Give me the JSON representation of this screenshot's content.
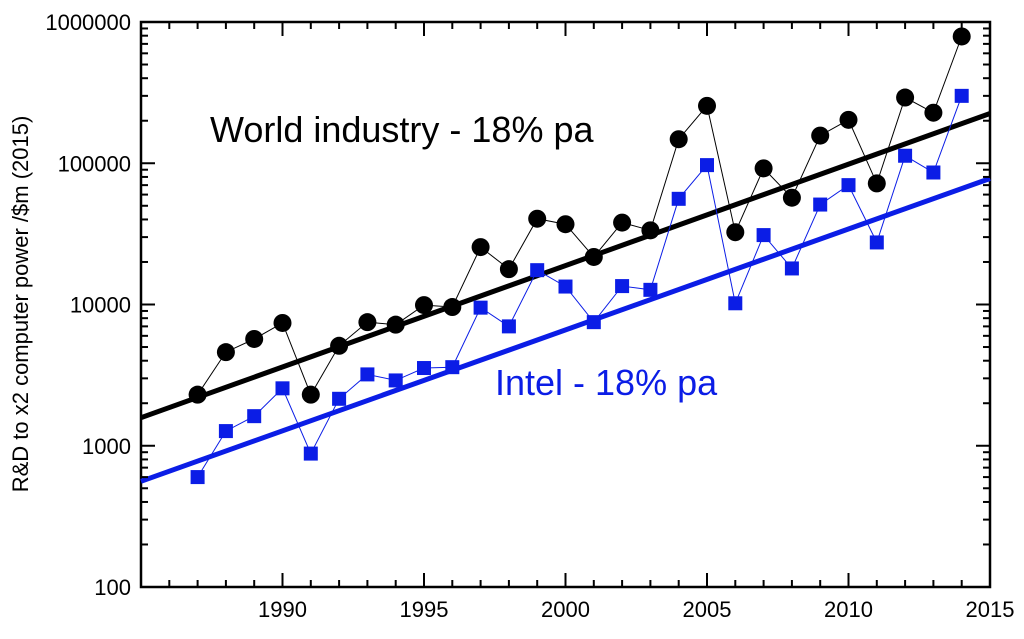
{
  "chart_data": {
    "type": "scatter",
    "title": "",
    "xlabel": "",
    "ylabel": "R&D to x2 computer power /$m (2015)",
    "xlim": [
      1985,
      2015
    ],
    "ylim": [
      100,
      1000000
    ],
    "y_scale": "log",
    "x_ticks": [
      1990,
      1995,
      2000,
      2005,
      2010,
      2015
    ],
    "y_ticks": [
      100,
      1000,
      10000,
      100000,
      1000000
    ],
    "y_tick_labels": [
      "100",
      "1000",
      "10000",
      "100000",
      "1000000"
    ],
    "grid": false,
    "legend": "none",
    "x": [
      1987,
      1988,
      1989,
      1990,
      1991,
      1992,
      1993,
      1994,
      1995,
      1996,
      1997,
      1998,
      1999,
      2000,
      2001,
      2002,
      2003,
      2004,
      2005,
      2006,
      2007,
      2008,
      2009,
      2010,
      2011,
      2012,
      2013,
      2014
    ],
    "series": [
      {
        "marker": "circle",
        "color": "#000000",
        "values": [
          2300,
          4600,
          5700,
          7400,
          2300,
          5100,
          7500,
          7200,
          9900,
          9600,
          25500,
          17800,
          40500,
          37000,
          21700,
          38000,
          33500,
          148000,
          255000,
          32500,
          92000,
          57000,
          157000,
          203000,
          72000,
          292000,
          228000,
          790000
        ]
      },
      {
        "marker": "square",
        "color": "#0b1de6",
        "values": [
          600,
          1270,
          1620,
          2550,
          880,
          2150,
          3200,
          2900,
          3550,
          3600,
          9500,
          7000,
          17500,
          13400,
          7500,
          13500,
          12700,
          56000,
          97000,
          10200,
          31000,
          18000,
          51000,
          70000,
          27500,
          113000,
          86000,
          300000
        ]
      }
    ],
    "trend_lines": [
      {
        "label": "World industry - 18% pa",
        "color": "#000000",
        "start": {
          "x": 1985,
          "y": 1580
        },
        "end": {
          "x": 2015,
          "y": 225000
        }
      },
      {
        "label": "Intel - 18% pa",
        "color": "#0b1de6",
        "start": {
          "x": 1985,
          "y": 560
        },
        "end": {
          "x": 2015,
          "y": 78000
        }
      }
    ]
  }
}
